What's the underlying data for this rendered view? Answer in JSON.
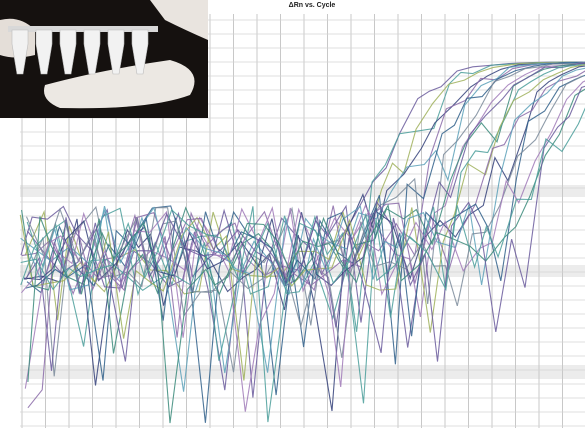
{
  "title": "ΔRn vs. Cycle"
}
